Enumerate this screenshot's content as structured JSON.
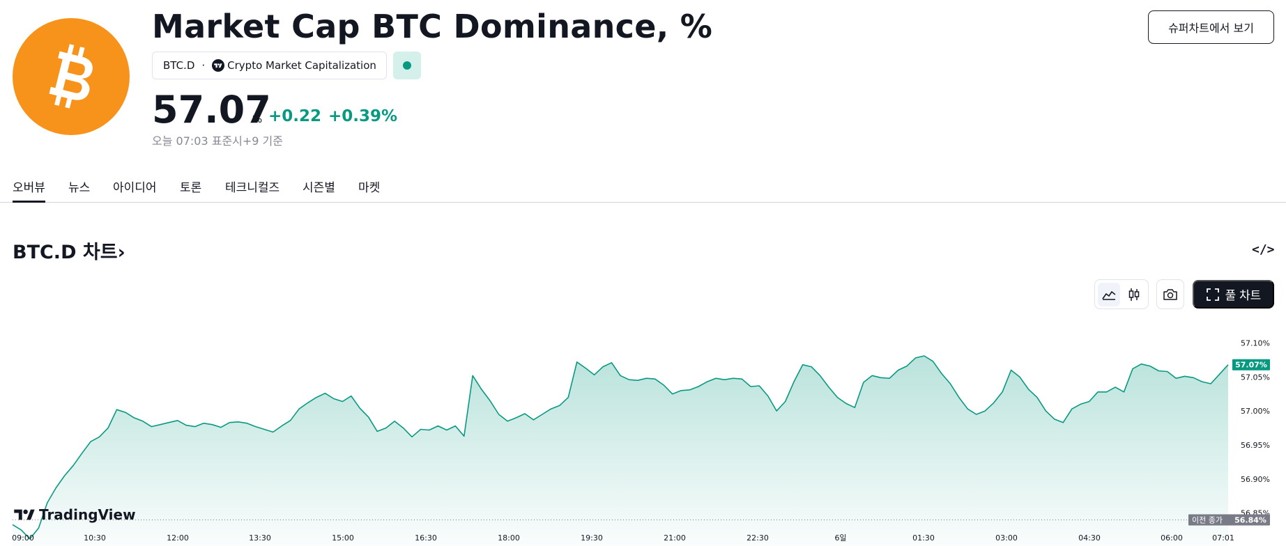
{
  "header": {
    "title": "Market Cap BTC Dominance, %",
    "ticker": "BTC.D",
    "exchange": "Crypto Market Capitalization",
    "price": "57.07",
    "unit": "%",
    "change_abs": "+0.22",
    "change_pct": "+0.39%",
    "time_note": "오늘 07:03 표준시+9 기준",
    "supercharts_button": "슈퍼차트에서 보기",
    "status": "market-open"
  },
  "tabs": [
    {
      "label": "오버뷰",
      "active": true
    },
    {
      "label": "뉴스",
      "active": false
    },
    {
      "label": "아이디어",
      "active": false
    },
    {
      "label": "토론",
      "active": false
    },
    {
      "label": "테크니컬즈",
      "active": false
    },
    {
      "label": "시즌별",
      "active": false
    },
    {
      "label": "마켓",
      "active": false
    }
  ],
  "chart_section": {
    "title": "BTC.D 차트",
    "chevron": "›",
    "embed_icon": "</>",
    "full_chart_button": "풀 차트",
    "watermark": "TradingView"
  },
  "colors": {
    "brand_orange": "#f7931a",
    "positive_green": "#089981",
    "line_color": "#089981",
    "dark": "#131722"
  },
  "chart_data": {
    "type": "area",
    "series": [
      {
        "values": [
          56.833,
          56.825,
          56.812,
          56.828,
          56.865,
          56.887,
          56.905,
          56.92,
          56.938,
          56.955,
          56.962,
          56.975,
          57.002,
          56.998,
          56.99,
          56.985,
          56.977,
          56.98,
          56.983,
          56.986,
          56.979,
          56.977,
          56.982,
          56.98,
          56.976,
          56.983,
          56.984,
          56.982,
          56.977,
          56.973,
          56.969,
          56.978,
          56.986,
          57.003,
          57.012,
          57.02,
          57.026,
          57.018,
          57.014,
          57.022,
          57.004,
          56.991,
          56.97,
          56.975,
          56.985,
          56.975,
          56.962,
          56.973,
          56.972,
          56.978,
          56.972,
          56.978,
          56.963,
          57.052,
          57.032,
          57.015,
          56.995,
          56.985,
          56.99,
          56.996,
          56.987,
          56.995,
          57.003,
          57.008,
          57.02,
          57.072,
          57.063,
          57.053,
          57.065,
          57.071,
          57.052,
          57.046,
          57.045,
          57.048,
          57.047,
          57.038,
          57.025,
          57.03,
          57.031,
          57.036,
          57.043,
          57.048,
          57.046,
          57.048,
          57.047,
          57.036,
          57.037,
          57.022,
          57.0,
          57.014,
          57.043,
          57.068,
          57.065,
          57.052,
          57.035,
          57.02,
          57.011,
          57.005,
          57.042,
          57.052,
          57.049,
          57.048,
          57.06,
          57.066,
          57.078,
          57.081,
          57.073,
          57.055,
          57.04,
          57.02,
          57.003,
          56.995,
          57.0,
          57.012,
          57.028,
          57.06,
          57.05,
          57.032,
          57.02,
          57.0,
          56.988,
          56.983,
          57.003,
          57.01,
          57.014,
          57.028,
          57.028,
          57.035,
          57.028,
          57.062,
          57.069,
          57.066,
          57.059,
          57.058,
          57.048,
          57.051,
          57.049,
          57.043,
          57.04,
          57.054,
          57.068
        ]
      }
    ],
    "x_ticks": [
      "09:00",
      "10:30",
      "12:00",
      "13:30",
      "15:00",
      "16:30",
      "18:00",
      "19:30",
      "21:00",
      "22:30",
      "6일",
      "01:30",
      "03:00",
      "04:30",
      "06:00",
      "07:01"
    ],
    "y_ticks": [
      "57.10%",
      "57.05%",
      "57.00%",
      "56.95%",
      "56.90%",
      "56.85%"
    ],
    "ylim": [
      56.82,
      57.125
    ],
    "previous_close": 56.84,
    "previous_close_label": "이전 종가",
    "previous_close_value": "56.84%",
    "last_value_label": "57.07%",
    "grid": false,
    "xlabel": "",
    "ylabel": ""
  }
}
